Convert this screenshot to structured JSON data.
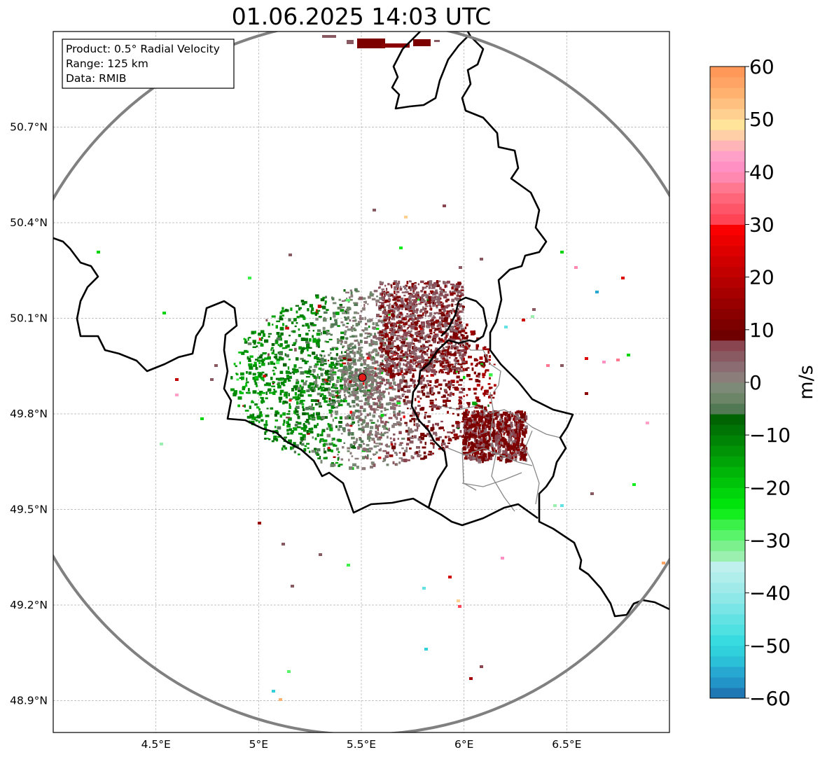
{
  "title": "01.06.2025 14:03 UTC",
  "info_box": {
    "product": "Product: 0.5° Radial Velocity",
    "range": "Range: 125 km",
    "data": "Data: RMIB"
  },
  "map": {
    "lon_range": [
      4.0,
      7.0
    ],
    "lat_range": [
      48.8,
      51.0
    ],
    "x_ticks": [
      {
        "value": 4.5,
        "label": "4.5°E"
      },
      {
        "value": 5.0,
        "label": "5°E"
      },
      {
        "value": 5.5,
        "label": "5.5°E"
      },
      {
        "value": 6.0,
        "label": "6°E"
      },
      {
        "value": 6.5,
        "label": "6.5°E"
      }
    ],
    "y_ticks": [
      {
        "value": 50.7,
        "label": "50.7°N"
      },
      {
        "value": 50.4,
        "label": "50.4°N"
      },
      {
        "value": 50.1,
        "label": "50.1°N"
      },
      {
        "value": 49.8,
        "label": "49.8°N"
      },
      {
        "value": 49.5,
        "label": "49.5°N"
      },
      {
        "value": 49.2,
        "label": "49.2°N"
      },
      {
        "value": 48.9,
        "label": "48.9°N"
      }
    ],
    "radar_site": {
      "lon": 5.505,
      "lat": 49.914
    },
    "range_ring_color": "#808080",
    "border_color": "#000000",
    "admin_border_color": "#888888"
  },
  "colorbar": {
    "label": "m/s",
    "min": -60,
    "max": 60,
    "ticks": [
      {
        "value": 60,
        "label": "60"
      },
      {
        "value": 50,
        "label": "50"
      },
      {
        "value": 40,
        "label": "40"
      },
      {
        "value": 30,
        "label": "30"
      },
      {
        "value": 20,
        "label": "20"
      },
      {
        "value": 10,
        "label": "10"
      },
      {
        "value": 0,
        "label": "0"
      },
      {
        "value": -10,
        "label": "−10"
      },
      {
        "value": -20,
        "label": "−20"
      },
      {
        "value": -30,
        "label": "−30"
      },
      {
        "value": -40,
        "label": "−40"
      },
      {
        "value": -50,
        "label": "−50"
      },
      {
        "value": -60,
        "label": "−60"
      }
    ],
    "segments": [
      {
        "from": -60,
        "to": -58,
        "color": "#1f77b4"
      },
      {
        "from": -58,
        "to": -56,
        "color": "#2394c8"
      },
      {
        "from": -56,
        "to": -54,
        "color": "#27a8d0"
      },
      {
        "from": -54,
        "to": -52,
        "color": "#2bbfd8"
      },
      {
        "from": -52,
        "to": -50,
        "color": "#30d0dc"
      },
      {
        "from": -50,
        "to": -48,
        "color": "#38dbe0"
      },
      {
        "from": -48,
        "to": -46,
        "color": "#4fe0e2"
      },
      {
        "from": -46,
        "to": -44,
        "color": "#63e2e4"
      },
      {
        "from": -44,
        "to": -42,
        "color": "#7ae5e6"
      },
      {
        "from": -42,
        "to": -40,
        "color": "#8ee8e8"
      },
      {
        "from": -40,
        "to": -38,
        "color": "#a0ebea"
      },
      {
        "from": -38,
        "to": -36,
        "color": "#b0eeec"
      },
      {
        "from": -36,
        "to": -34,
        "color": "#bff0ee"
      },
      {
        "from": -34,
        "to": -32,
        "color": "#9bf0b0"
      },
      {
        "from": -32,
        "to": -30,
        "color": "#7bf08c"
      },
      {
        "from": -30,
        "to": -28,
        "color": "#5af46a"
      },
      {
        "from": -28,
        "to": -26,
        "color": "#3cf04a"
      },
      {
        "from": -26,
        "to": -24,
        "color": "#14ee1e"
      },
      {
        "from": -24,
        "to": -22,
        "color": "#00e40c"
      },
      {
        "from": -22,
        "to": -20,
        "color": "#00d40a"
      },
      {
        "from": -20,
        "to": -18,
        "color": "#00c409"
      },
      {
        "from": -18,
        "to": -16,
        "color": "#00b408"
      },
      {
        "from": -16,
        "to": -14,
        "color": "#00a407"
      },
      {
        "from": -14,
        "to": -12,
        "color": "#009406"
      },
      {
        "from": -12,
        "to": -10,
        "color": "#008405"
      },
      {
        "from": -10,
        "to": -8,
        "color": "#007404"
      },
      {
        "from": -8,
        "to": -6,
        "color": "#006403"
      },
      {
        "from": -6,
        "to": -4,
        "color": "#517a54"
      },
      {
        "from": -4,
        "to": -2,
        "color": "#6b8566"
      },
      {
        "from": -2,
        "to": 0,
        "color": "#7d8a78"
      },
      {
        "from": 0,
        "to": 2,
        "color": "#8a7d7a"
      },
      {
        "from": 2,
        "to": 4,
        "color": "#8a6c72"
      },
      {
        "from": 4,
        "to": 6,
        "color": "#8a5a62"
      },
      {
        "from": 6,
        "to": 8,
        "color": "#8a4650"
      },
      {
        "from": 8,
        "to": 10,
        "color": "#6e0000"
      },
      {
        "from": 10,
        "to": 12,
        "color": "#7c0000"
      },
      {
        "from": 12,
        "to": 14,
        "color": "#8a0000"
      },
      {
        "from": 14,
        "to": 16,
        "color": "#980000"
      },
      {
        "from": 16,
        "to": 18,
        "color": "#a60000"
      },
      {
        "from": 18,
        "to": 20,
        "color": "#b40000"
      },
      {
        "from": 20,
        "to": 22,
        "color": "#c20000"
      },
      {
        "from": 22,
        "to": 24,
        "color": "#d00000"
      },
      {
        "from": 24,
        "to": 26,
        "color": "#de0000"
      },
      {
        "from": 26,
        "to": 28,
        "color": "#ec0000"
      },
      {
        "from": 28,
        "to": 30,
        "color": "#fa0000"
      },
      {
        "from": 30,
        "to": 32,
        "color": "#ff4555"
      },
      {
        "from": 32,
        "to": 34,
        "color": "#ff5568"
      },
      {
        "from": 34,
        "to": 36,
        "color": "#ff667a"
      },
      {
        "from": 36,
        "to": 38,
        "color": "#ff7890"
      },
      {
        "from": 38,
        "to": 40,
        "color": "#ff88b0"
      },
      {
        "from": 40,
        "to": 42,
        "color": "#ff90c4"
      },
      {
        "from": 42,
        "to": 44,
        "color": "#ffa0c8"
      },
      {
        "from": 44,
        "to": 46,
        "color": "#ffb4b8"
      },
      {
        "from": 46,
        "to": 48,
        "color": "#ffd0a8"
      },
      {
        "from": 48,
        "to": 50,
        "color": "#ffe49a"
      },
      {
        "from": 50,
        "to": 52,
        "color": "#ffd090"
      },
      {
        "from": 52,
        "to": 54,
        "color": "#ffc080"
      },
      {
        "from": 54,
        "to": 56,
        "color": "#ffb270"
      },
      {
        "from": 56,
        "to": 58,
        "color": "#ffa464"
      },
      {
        "from": 58,
        "to": 60,
        "color": "#ff9858"
      }
    ]
  }
}
